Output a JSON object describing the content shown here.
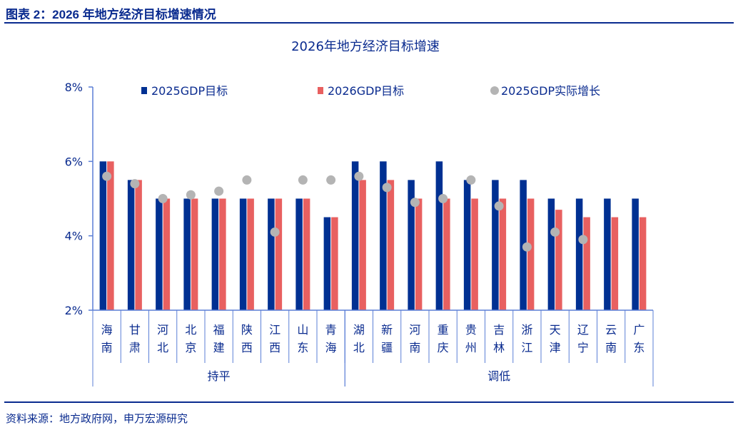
{
  "figure_title": "图表 2：2026 年地方经济目标增速情况",
  "source": "资料来源：地方政府网，申万宏源研究",
  "colors": {
    "target2025": "#003092",
    "target2026": "#E86060",
    "actual2025": "#B4B4B4",
    "text": "#0a2b8f"
  },
  "chart_data": {
    "type": "bar",
    "title": "2026年地方经济目标增速",
    "ylim": [
      2,
      8
    ],
    "yticks": [
      "2%",
      "4%",
      "6%",
      "8%"
    ],
    "ytick_values": [
      2,
      4,
      6,
      8
    ],
    "legend_position": "top",
    "categories": [
      "海南",
      "甘肃",
      "河北",
      "北京",
      "福建",
      "陕西",
      "江西",
      "山东",
      "青海",
      "湖北",
      "新疆",
      "河南",
      "重庆",
      "贵州",
      "吉林",
      "浙江",
      "天津",
      "辽宁",
      "云南",
      "广东"
    ],
    "groups": [
      {
        "label": "持平",
        "count": 9
      },
      {
        "label": "调低",
        "count": 11
      }
    ],
    "series": [
      {
        "name": "2025GDP目标",
        "kind": "bar",
        "values": [
          6,
          5.5,
          5,
          5,
          5,
          5,
          5,
          5,
          4.5,
          6,
          6,
          5.5,
          6,
          5.5,
          5.5,
          5.5,
          5,
          5,
          5,
          5
        ]
      },
      {
        "name": "2026GDP目标",
        "kind": "bar",
        "values": [
          6,
          5.5,
          5,
          5,
          5,
          5,
          5,
          5,
          4.5,
          5.5,
          5.5,
          5,
          5,
          5,
          5,
          5,
          4.7,
          4.5,
          4.5,
          4.5
        ]
      },
      {
        "name": "2025GDP实际增长",
        "kind": "scatter",
        "values": [
          5.6,
          5.4,
          5.0,
          5.1,
          5.2,
          5.5,
          4.1,
          5.5,
          5.5,
          5.6,
          5.3,
          4.9,
          5.0,
          5.5,
          4.8,
          3.7,
          4.1,
          3.9,
          null,
          null
        ]
      }
    ]
  }
}
